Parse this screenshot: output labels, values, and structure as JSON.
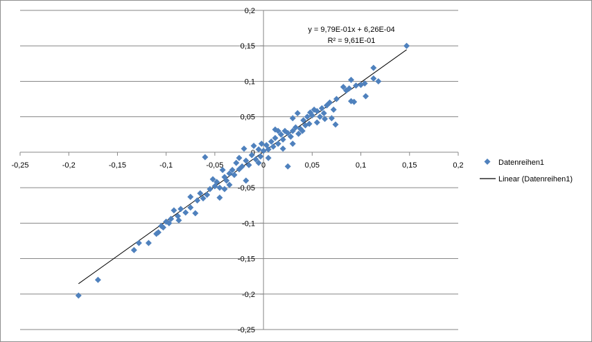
{
  "chart_data": {
    "type": "scatter",
    "title": "",
    "xlabel": "",
    "ylabel": "",
    "xlim": [
      -0.25,
      0.2
    ],
    "ylim": [
      -0.25,
      0.2
    ],
    "x_ticks": [
      -0.25,
      -0.2,
      -0.15,
      -0.1,
      -0.05,
      0,
      0.05,
      0.1,
      0.15,
      0.2
    ],
    "y_ticks": [
      -0.25,
      -0.2,
      -0.15,
      -0.1,
      -0.05,
      0,
      0.05,
      0.1,
      0.15,
      0.2
    ],
    "x_tick_labels": [
      "-0,25",
      "-0,2",
      "-0,15",
      "-0,1",
      "-0,05",
      "0",
      "0,05",
      "0,1",
      "0,15",
      "0,2"
    ],
    "y_tick_labels": [
      "-0,25",
      "-0,2",
      "-0,15",
      "-0,1",
      "-0,05",
      "0",
      "0,05",
      "0,1",
      "0,15",
      "0,2"
    ],
    "grid": "horizontal major gridlines",
    "legend_position": "right",
    "series": [
      {
        "name": "Datenreihen1",
        "color": "#4f81bd",
        "marker": "diamond",
        "points": [
          [
            0.147,
            0.15
          ],
          [
            0.113,
            0.119
          ],
          [
            0.113,
            0.104
          ],
          [
            0.118,
            0.1
          ],
          [
            0.105,
            0.079
          ],
          [
            0.093,
            0.071
          ],
          [
            0.09,
            0.072
          ],
          [
            0.09,
            0.102
          ],
          [
            0.1,
            0.095
          ],
          [
            0.104,
            0.097
          ],
          [
            0.095,
            0.094
          ],
          [
            0.085,
            0.087
          ],
          [
            0.082,
            0.092
          ],
          [
            0.088,
            0.09
          ],
          [
            0.074,
            0.039
          ],
          [
            0.07,
            0.048
          ],
          [
            0.072,
            0.06
          ],
          [
            0.075,
            0.075
          ],
          [
            0.068,
            0.07
          ],
          [
            0.065,
            0.066
          ],
          [
            0.06,
            0.062
          ],
          [
            0.062,
            0.055
          ],
          [
            0.058,
            0.05
          ],
          [
            0.055,
            0.058
          ],
          [
            0.052,
            0.06
          ],
          [
            0.05,
            0.052
          ],
          [
            0.048,
            0.056
          ],
          [
            0.045,
            0.05
          ],
          [
            0.047,
            0.04
          ],
          [
            0.043,
            0.038
          ],
          [
            0.041,
            0.045
          ],
          [
            0.035,
            0.055
          ],
          [
            0.03,
            0.048
          ],
          [
            0.038,
            0.033
          ],
          [
            0.04,
            0.03
          ],
          [
            0.036,
            0.026
          ],
          [
            0.033,
            0.035
          ],
          [
            0.03,
            0.03
          ],
          [
            0.028,
            0.022
          ],
          [
            0.025,
            0.027
          ],
          [
            0.022,
            0.03
          ],
          [
            0.02,
            0.018
          ],
          [
            0.018,
            0.025
          ],
          [
            0.015,
            0.012
          ],
          [
            0.012,
            0.02
          ],
          [
            0.01,
            0.008
          ],
          [
            0.008,
            0.015
          ],
          [
            0.005,
            0.004
          ],
          [
            0.003,
            0.01
          ],
          [
            0.025,
            -0.02
          ],
          [
            0.02,
            0.005
          ],
          [
            0.03,
            0.012
          ],
          [
            0.055,
            0.042
          ],
          [
            0.063,
            0.047
          ],
          [
            0.015,
            0.03
          ],
          [
            0.012,
            0.032
          ],
          [
            0,
            0.002
          ],
          [
            -0.003,
            -0.006
          ],
          [
            -0.005,
            0.004
          ],
          [
            -0.008,
            -0.01
          ],
          [
            -0.01,
            0.009
          ],
          [
            -0.012,
            -0.004
          ],
          [
            -0.015,
            -0.018
          ],
          [
            -0.018,
            -0.012
          ],
          [
            -0.02,
            0.005
          ],
          [
            -0.022,
            -0.02
          ],
          [
            -0.025,
            -0.024
          ],
          [
            -0.028,
            -0.015
          ],
          [
            -0.03,
            -0.032
          ],
          [
            -0.032,
            -0.025
          ],
          [
            -0.035,
            -0.03
          ],
          [
            -0.038,
            -0.04
          ],
          [
            -0.04,
            -0.035
          ],
          [
            -0.042,
            -0.025
          ],
          [
            -0.045,
            -0.05
          ],
          [
            -0.048,
            -0.042
          ],
          [
            -0.05,
            -0.048
          ],
          [
            -0.052,
            -0.038
          ],
          [
            -0.055,
            -0.052
          ],
          [
            -0.058,
            -0.06
          ],
          [
            -0.06,
            -0.007
          ],
          [
            -0.045,
            -0.064
          ],
          [
            -0.005,
            -0.015
          ],
          [
            -0.002,
            0.012
          ],
          [
            -0.018,
            -0.04
          ],
          [
            -0.025,
            -0.008
          ],
          [
            -0.035,
            -0.046
          ],
          [
            -0.04,
            -0.052
          ],
          [
            0.005,
            -0.008
          ],
          [
            -0.062,
            -0.065
          ],
          [
            -0.065,
            -0.058
          ],
          [
            -0.068,
            -0.068
          ],
          [
            -0.07,
            -0.086
          ],
          [
            -0.075,
            -0.063
          ],
          [
            -0.075,
            -0.078
          ],
          [
            -0.08,
            -0.085
          ],
          [
            -0.085,
            -0.08
          ],
          [
            -0.087,
            -0.096
          ],
          [
            -0.088,
            -0.09
          ],
          [
            -0.092,
            -0.082
          ],
          [
            -0.095,
            -0.094
          ],
          [
            -0.097,
            -0.1
          ],
          [
            -0.1,
            -0.098
          ],
          [
            -0.103,
            -0.106
          ],
          [
            -0.105,
            -0.104
          ],
          [
            -0.108,
            -0.113
          ],
          [
            -0.11,
            -0.115
          ],
          [
            -0.118,
            -0.128
          ],
          [
            -0.128,
            -0.128
          ],
          [
            -0.133,
            -0.138
          ],
          [
            -0.17,
            -0.18
          ],
          [
            -0.19,
            -0.202
          ]
        ]
      }
    ],
    "trendline": {
      "name": "Linear (Datenreihen1)",
      "type": "linear",
      "slope": 0.979,
      "intercept": 0.000626,
      "x_range": [
        -0.19,
        0.147
      ],
      "color": "#000000",
      "equation_label": "y = 9,79E-01x + 6,26E-04",
      "r2_label": "R² = 9,61E-01"
    },
    "legend": [
      "Datenreihen1",
      "Linear (Datenreihen1)"
    ]
  }
}
